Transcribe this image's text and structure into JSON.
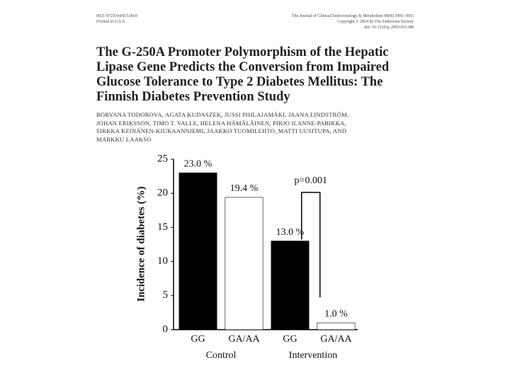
{
  "header": {
    "left": [
      "0021-972X/04/$15.00/0",
      "Printed in U.S.A."
    ],
    "right": [
      "The Journal of Clinical Endocrinology & Metabolism 89(8):3901–3955",
      "Copyright © 2004 by The Endocrine Society",
      "doi: 10.1210/jc.2003-031388"
    ]
  },
  "title": [
    "The G-250A Promoter Polymorphism of the Hepatic",
    "Lipase Gene Predicts the Conversion from Impaired",
    "Glucose Tolerance to Type 2 Diabetes Mellitus: The",
    "Finnish Diabetes Prevention Study"
  ],
  "authors": [
    "BORYANA TODOROVA, AGATA KUDASZEK, JUSSI PIHLAJAMÄKI, JAANA LINDSTRÖM,",
    "JOHAN ERIKSSON, TIMO T. VALLE, HELENA HÄMÄLÄINEN, PIRJO ILANNE-PARIKKA,",
    "SIRKKA KEINÄNEN-KIUKAANNIEMI, JAAKKO TUOMILEHTO, MATTI UUSITUPA, AND",
    "MARKKU LAAKSO"
  ],
  "chart_data": {
    "type": "bar",
    "y_label": "Incidence of diabetes (%)",
    "categories": [
      "GG",
      "GA/AA",
      "GG",
      "GA/AA"
    ],
    "values": [
      23.0,
      19.4,
      13.0,
      1.0
    ],
    "value_labels": [
      "23.0 %",
      "19.4 %",
      "13.0 %",
      "1.0 %"
    ],
    "colors": [
      "#000000",
      "#ffffff",
      "#000000",
      "#ffffff"
    ],
    "groups": [
      "Control",
      "Intervention"
    ],
    "annotation": "p=0.001",
    "ylim": [
      0,
      25
    ],
    "yticks": [
      0,
      5,
      10,
      15,
      20,
      25
    ]
  }
}
